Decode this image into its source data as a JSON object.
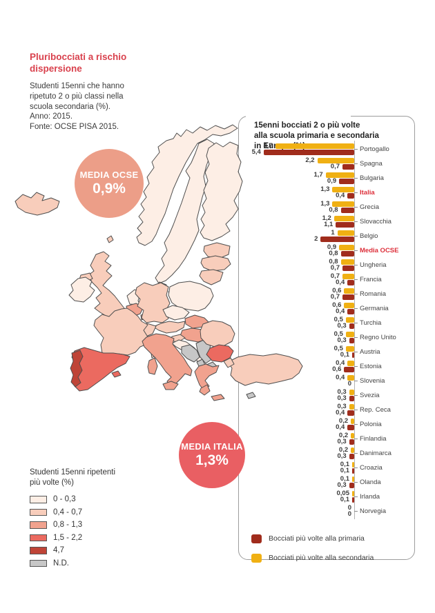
{
  "header": {
    "title": "Pluribocciati a rischio\ndispersione",
    "subtitle": "Studenti 15enni che hanno\nripetuto 2 o più classi nella\nscuola secondaria (%).\nAnno: 2015.\nFonte: OCSE PISA 2015."
  },
  "badges": {
    "ocse": {
      "label": "MEDIA OCSE",
      "value": "0,9%",
      "color": "#ec9e88"
    },
    "italia": {
      "label": "MEDIA ITALIA",
      "value": "1,3%",
      "color": "#e95f63"
    }
  },
  "map_legend": {
    "title": "Studenti 15enni ripetenti\npiù volte (%)",
    "items": [
      {
        "key": "c1",
        "label": "0 - 0,3",
        "color": "#fdeee5"
      },
      {
        "key": "c2",
        "label": "0,4 - 0,7",
        "color": "#f8cdbb"
      },
      {
        "key": "c3",
        "label": "0,8 - 1,3",
        "color": "#f1a28e"
      },
      {
        "key": "c4",
        "label": "1,5 - 2,2",
        "color": "#eb6a60"
      },
      {
        "key": "c5",
        "label": "4,7",
        "color": "#bf4437"
      },
      {
        "key": "nd",
        "label": "N.D.",
        "color": "#c7c7c7"
      }
    ]
  },
  "map": {
    "countries": [
      {
        "id": "islanda",
        "name": "Islanda",
        "category": "c2"
      },
      {
        "id": "svezia",
        "name": "Svezia",
        "category": "c1"
      },
      {
        "id": "norvegia",
        "name": "Norvegia",
        "category": "c1"
      },
      {
        "id": "finlandia",
        "name": "Finlandia",
        "category": "c1"
      },
      {
        "id": "estonia",
        "name": "Estonia",
        "category": "c2"
      },
      {
        "id": "lettonia",
        "name": "Lettonia",
        "category": "c2"
      },
      {
        "id": "lituania",
        "name": "Lituania",
        "category": "c2"
      },
      {
        "id": "danimarca",
        "name": "Danimarca",
        "category": "c1"
      },
      {
        "id": "danimarca-isola",
        "name": "Danimarca (isole)",
        "category": "c1"
      },
      {
        "id": "regno-unito",
        "name": "Regno Unito",
        "category": "c2"
      },
      {
        "id": "shetland",
        "name": "Shetland",
        "category": "c2"
      },
      {
        "id": "irlanda-del-nord",
        "name": "Irlanda del Nord",
        "category": "c2"
      },
      {
        "id": "irlanda",
        "name": "Irlanda",
        "category": "c1"
      },
      {
        "id": "olanda",
        "name": "Olanda",
        "category": "c1"
      },
      {
        "id": "belgio",
        "name": "Belgio",
        "category": "c3"
      },
      {
        "id": "lussemburgo",
        "name": "Lussemburgo",
        "category": "c3"
      },
      {
        "id": "germania",
        "name": "Germania",
        "category": "c2"
      },
      {
        "id": "polonia",
        "name": "Polonia",
        "category": "c1"
      },
      {
        "id": "rep-ceca",
        "name": "Rep. Ceca",
        "category": "c1"
      },
      {
        "id": "slovacchia",
        "name": "Slovacchia",
        "category": "c3"
      },
      {
        "id": "austria",
        "name": "Austria",
        "category": "c2"
      },
      {
        "id": "svizzera",
        "name": "Svizzera",
        "category": "c2"
      },
      {
        "id": "ungheria",
        "name": "Ungheria",
        "category": "c3"
      },
      {
        "id": "slovenia",
        "name": "Slovenia",
        "category": "c2"
      },
      {
        "id": "croazia",
        "name": "Croazia",
        "category": "c1"
      },
      {
        "id": "bosnia",
        "name": "Bosnia",
        "category": "nd"
      },
      {
        "id": "serbia",
        "name": "Serbia",
        "category": "nd"
      },
      {
        "id": "montenegro",
        "name": "Montenegro",
        "category": "nd"
      },
      {
        "id": "albania",
        "name": "Albania",
        "category": "nd"
      },
      {
        "id": "macedonia",
        "name": "Macedonia",
        "category": "nd"
      },
      {
        "id": "romania",
        "name": "Romania",
        "category": "c2"
      },
      {
        "id": "bulgaria",
        "name": "Bulgaria",
        "category": "c4"
      },
      {
        "id": "grecia",
        "name": "Grecia",
        "category": "c3"
      },
      {
        "id": "peloponneso",
        "name": "Peloponneso",
        "category": "c3"
      },
      {
        "id": "creta",
        "name": "Creta",
        "category": "c3"
      },
      {
        "id": "isola-nd",
        "name": "Isola N.D.",
        "category": "nd"
      },
      {
        "id": "turchia",
        "name": "Turchia",
        "category": "c2"
      },
      {
        "id": "tracia-turca",
        "name": "Tracia turca",
        "category": "c2"
      },
      {
        "id": "francia",
        "name": "Francia",
        "category": "c2"
      },
      {
        "id": "corsica",
        "name": "Corsica",
        "category": "c2"
      },
      {
        "id": "spagna",
        "name": "Spagna",
        "category": "c4"
      },
      {
        "id": "baleari",
        "name": "Baleari",
        "category": "c4"
      },
      {
        "id": "portogallo",
        "name": "Portogallo",
        "category": "c5"
      },
      {
        "id": "italia",
        "name": "Italia",
        "category": "c3"
      },
      {
        "id": "sicilia",
        "name": "Sicilia",
        "category": "c3"
      },
      {
        "id": "sardegna",
        "name": "Sardegna",
        "category": "c3"
      }
    ]
  },
  "chart_data": {
    "type": "bar",
    "title": "15enni bocciati 2 o più volte\nalla scuola primaria e secondaria\nin Europa (%)",
    "orientation": "horizontal-right-aligned",
    "unit": "%",
    "series_order": [
      "secondaria",
      "primaria"
    ],
    "series_colors": {
      "primaria": "#a02c1c",
      "secondaria": "#f0b013"
    },
    "legend": [
      {
        "label": "Bocciati più volte alla primaria",
        "color": "#a02c1c"
      },
      {
        "label": "Bocciati più volte alla secondaria",
        "color": "#f0b013"
      }
    ],
    "rows": [
      {
        "country": "Portogallo",
        "secondaria": "4,7",
        "primaria": "5,4",
        "highlight": false
      },
      {
        "country": "Spagna",
        "secondaria": "2,2",
        "primaria": "0,7",
        "highlight": false
      },
      {
        "country": "Bulgaria",
        "secondaria": "1,7",
        "primaria": "0,9",
        "highlight": false
      },
      {
        "country": "Italia",
        "secondaria": "1,3",
        "primaria": "0,4",
        "highlight": true
      },
      {
        "country": "Grecia",
        "secondaria": "1,3",
        "primaria": "0,8",
        "highlight": false
      },
      {
        "country": "Slovacchia",
        "secondaria": "1,2",
        "primaria": "1,1",
        "highlight": false
      },
      {
        "country": "Belgio",
        "secondaria": "1",
        "primaria": "2",
        "highlight": false
      },
      {
        "country": "Media OCSE",
        "secondaria": "0,9",
        "primaria": "0,8",
        "highlight": true
      },
      {
        "country": "Ungheria",
        "secondaria": "0,8",
        "primaria": "0,7",
        "highlight": false
      },
      {
        "country": "Francia",
        "secondaria": "0,7",
        "primaria": "0,4",
        "highlight": false
      },
      {
        "country": "Romania",
        "secondaria": "0,6",
        "primaria": "0,7",
        "highlight": false
      },
      {
        "country": "Germania",
        "secondaria": "0,6",
        "primaria": "0,4",
        "highlight": false
      },
      {
        "country": "Turchia",
        "secondaria": "0,5",
        "primaria": "0,3",
        "highlight": false
      },
      {
        "country": "Regno Unito",
        "secondaria": "0,5",
        "primaria": "0,3",
        "highlight": false
      },
      {
        "country": "Austria",
        "secondaria": "0,5",
        "primaria": "0,1",
        "highlight": false
      },
      {
        "country": "Estonia",
        "secondaria": "0,4",
        "primaria": "0,6",
        "highlight": false
      },
      {
        "country": "Slovenia",
        "secondaria": "0,4",
        "primaria": "0",
        "highlight": false
      },
      {
        "country": "Svezia",
        "secondaria": "0,3",
        "primaria": "0,3",
        "highlight": false
      },
      {
        "country": "Rep. Ceca",
        "secondaria": "0,3",
        "primaria": "0,4",
        "highlight": false
      },
      {
        "country": "Polonia",
        "secondaria": "0,2",
        "primaria": "0,4",
        "highlight": false
      },
      {
        "country": "Finlandia",
        "secondaria": "0,2",
        "primaria": "0,3",
        "highlight": false
      },
      {
        "country": "Danimarca",
        "secondaria": "0,2",
        "primaria": "0,3",
        "highlight": false
      },
      {
        "country": "Croazia",
        "secondaria": "0,1",
        "primaria": "0,1",
        "highlight": false
      },
      {
        "country": "Olanda",
        "secondaria": "0,1",
        "primaria": "0,3",
        "highlight": false
      },
      {
        "country": "Irlanda",
        "secondaria": "0,05",
        "primaria": "0,1",
        "highlight": false
      },
      {
        "country": "Norvegia",
        "secondaria": "0",
        "primaria": "0",
        "highlight": false
      }
    ]
  }
}
